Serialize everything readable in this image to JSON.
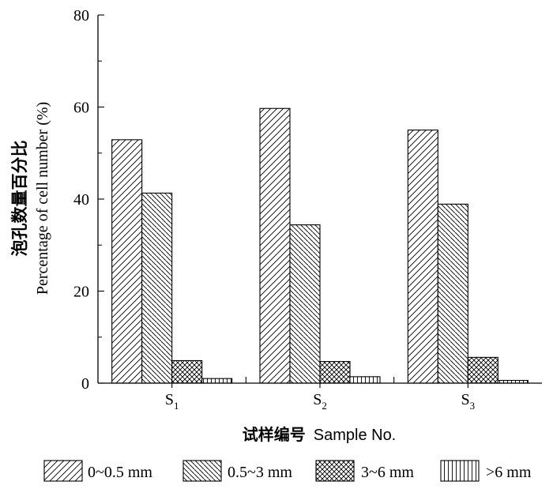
{
  "chart_data": {
    "type": "bar",
    "categories": [
      "S1",
      "S2",
      "S3"
    ],
    "category_labels": [
      {
        "main": "S",
        "sub": "1"
      },
      {
        "main": "S",
        "sub": "2"
      },
      {
        "main": "S",
        "sub": "3"
      }
    ],
    "series": [
      {
        "name": "0~0.5 mm",
        "pattern": "diagonal-forward",
        "values": [
          52.9,
          59.7,
          55.0
        ]
      },
      {
        "name": "0.5~3 mm",
        "pattern": "diagonal-backward",
        "values": [
          41.3,
          34.4,
          38.9
        ]
      },
      {
        "name": "3~6 mm",
        "pattern": "crosshatch",
        "values": [
          4.9,
          4.7,
          5.6
        ]
      },
      {
        "name": ">6 mm",
        "pattern": "vertical",
        "values": [
          1.0,
          1.4,
          0.6
        ]
      }
    ],
    "ylabel_cn": "泡孔数量百分比",
    "ylabel_en": "Percentage of cell number (%)",
    "xlabel_cn": "试样编号",
    "xlabel_en": "Sample No.",
    "ylim": [
      0,
      80
    ],
    "yticks": [
      "0",
      "20",
      "40",
      "60",
      "80"
    ],
    "grid": false,
    "legend_position": "bottom"
  }
}
